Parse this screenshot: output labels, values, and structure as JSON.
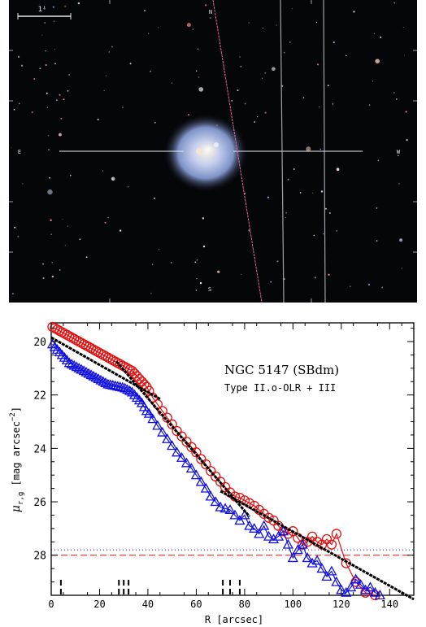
{
  "image_panel": {
    "scale_bar_label": "1'",
    "markers": {
      "top": "N",
      "left": "E",
      "right": "W",
      "bottom": "S"
    },
    "colors": {
      "sky": "#050608",
      "galaxy": "#c8d2f0",
      "guide_lines": "#e6ecf2",
      "red_line": "#ff6fa8"
    }
  },
  "chart_data": {
    "type": "scatter",
    "title": "NGC 5147 (SBdm)",
    "subtitle": "Type II.o-OLR + III",
    "xlabel": "R [arcsec]",
    "ylabel": "μr,g [mag arcsec−2]",
    "ylabel_parts": {
      "mu": "μ",
      "sub": "r,g",
      "bracket": "[mag arcsec",
      "sup": "−2",
      "close": "]"
    },
    "xlim": [
      0,
      150
    ],
    "ylim": [
      29.5,
      19.3
    ],
    "y_inverted": true,
    "x_ticks": [
      0,
      20,
      40,
      60,
      80,
      100,
      120,
      140
    ],
    "y_ticks": [
      20,
      22,
      24,
      26,
      28
    ],
    "bottom_markers_x": [
      4,
      28,
      30,
      32,
      71,
      74,
      78
    ],
    "limit_lines": [
      {
        "name": "r-band limit",
        "y": 28.0,
        "style": "dashed",
        "color": "#e01010"
      },
      {
        "name": "g-band limit",
        "y": 27.8,
        "style": "dotted",
        "color": "#1010e0"
      }
    ],
    "series": [
      {
        "band": "r",
        "marker": "circle",
        "color": "#e01010",
        "x": [
          0.5,
          1.5,
          2.5,
          3.5,
          4.5,
          5.5,
          6.5,
          7.5,
          8.5,
          9.5,
          10.5,
          11.5,
          12.5,
          13.5,
          14.5,
          15.5,
          16.5,
          17.5,
          18.5,
          19.5,
          20.5,
          21.5,
          22.5,
          23.5,
          24.5,
          25.5,
          26.5,
          27.5,
          28.5,
          29.5,
          30.5,
          31.5,
          32.5,
          33.5,
          34.5,
          35.5,
          36.5,
          37.5,
          38.5,
          39.5,
          40.5,
          42,
          44,
          46,
          48,
          50,
          52,
          54,
          56,
          58,
          60,
          62,
          64,
          66,
          68,
          70,
          72,
          74,
          76,
          78,
          80,
          82,
          84,
          86,
          88,
          90,
          92,
          94,
          96,
          98,
          100,
          102,
          104,
          106,
          108,
          110,
          112,
          114,
          116,
          118,
          122,
          126,
          130,
          134,
          138
        ],
        "y": [
          19.45,
          19.5,
          19.55,
          19.6,
          19.65,
          19.7,
          19.75,
          19.8,
          19.85,
          19.9,
          19.95,
          20.0,
          20.05,
          20.1,
          20.15,
          20.2,
          20.25,
          20.3,
          20.35,
          20.4,
          20.45,
          20.5,
          20.55,
          20.6,
          20.65,
          20.7,
          20.75,
          20.8,
          20.85,
          20.9,
          20.95,
          21.0,
          21.05,
          21.1,
          21.2,
          21.3,
          21.4,
          21.5,
          21.6,
          21.7,
          21.85,
          22.1,
          22.35,
          22.6,
          22.85,
          23.1,
          23.35,
          23.55,
          23.75,
          23.95,
          24.15,
          24.4,
          24.6,
          24.85,
          25.05,
          25.25,
          25.45,
          25.65,
          25.8,
          25.85,
          25.95,
          26.05,
          26.15,
          26.3,
          26.45,
          26.6,
          26.7,
          26.9,
          27.1,
          27.2,
          27.1,
          27.35,
          27.6,
          27.5,
          27.3,
          27.5,
          27.6,
          27.4,
          27.6,
          27.2,
          28.3,
          29.0,
          29.4,
          29.5,
          29.6
        ]
      },
      {
        "band": "g",
        "marker": "triangle",
        "color": "#1010e0",
        "x": [
          0.5,
          1.5,
          2.5,
          3.5,
          4.5,
          5.5,
          6.5,
          7.5,
          8.5,
          9.5,
          10.5,
          11.5,
          12.5,
          13.5,
          14.5,
          15.5,
          16.5,
          17.5,
          18.5,
          19.5,
          20.5,
          21.5,
          22.5,
          23.5,
          24.5,
          25.5,
          26.5,
          27.5,
          28.5,
          29.5,
          30.5,
          31.5,
          32.5,
          33.5,
          34.5,
          35.5,
          36.5,
          37.5,
          38.5,
          39.5,
          40.5,
          42,
          44,
          46,
          48,
          50,
          52,
          54,
          56,
          58,
          60,
          62,
          64,
          66,
          68,
          70,
          72,
          74,
          76,
          78,
          80,
          82,
          84,
          86,
          88,
          90,
          92,
          94,
          96,
          98,
          100,
          102,
          104,
          106,
          108,
          110,
          112,
          114,
          116,
          118,
          120,
          122,
          124,
          126,
          128,
          130,
          132,
          134,
          136,
          138
        ],
        "y": [
          20.1,
          20.2,
          20.3,
          20.4,
          20.5,
          20.6,
          20.7,
          20.8,
          20.85,
          20.9,
          20.95,
          21.0,
          21.05,
          21.1,
          21.15,
          21.2,
          21.25,
          21.3,
          21.35,
          21.4,
          21.45,
          21.5,
          21.55,
          21.6,
          21.62,
          21.64,
          21.66,
          21.68,
          21.7,
          21.72,
          21.75,
          21.8,
          21.85,
          21.9,
          22.0,
          22.1,
          22.2,
          22.3,
          22.45,
          22.6,
          22.7,
          22.9,
          23.15,
          23.4,
          23.65,
          23.9,
          24.15,
          24.35,
          24.55,
          24.75,
          25.0,
          25.25,
          25.5,
          25.8,
          26.0,
          26.2,
          26.25,
          26.3,
          26.5,
          26.7,
          26.5,
          26.9,
          27.0,
          27.2,
          26.9,
          27.3,
          27.4,
          27.3,
          27.1,
          27.6,
          28.1,
          27.8,
          27.6,
          28.1,
          28.3,
          28.2,
          28.5,
          28.8,
          28.6,
          29.0,
          29.3,
          29.4,
          29.2,
          28.9,
          29.1,
          29.3,
          29.2,
          29.4,
          29.5,
          29.6
        ]
      },
      {
        "band": "fit",
        "marker": "line",
        "color": "#000000",
        "segments": [
          {
            "x": [
              0,
              45
            ],
            "y": [
              19.85,
              22.15
            ]
          },
          {
            "x": [
              27,
              82
            ],
            "y": [
              20.75,
              26.55
            ]
          },
          {
            "x": [
              70,
              150
            ],
            "y": [
              25.6,
              29.65
            ]
          }
        ]
      }
    ]
  }
}
